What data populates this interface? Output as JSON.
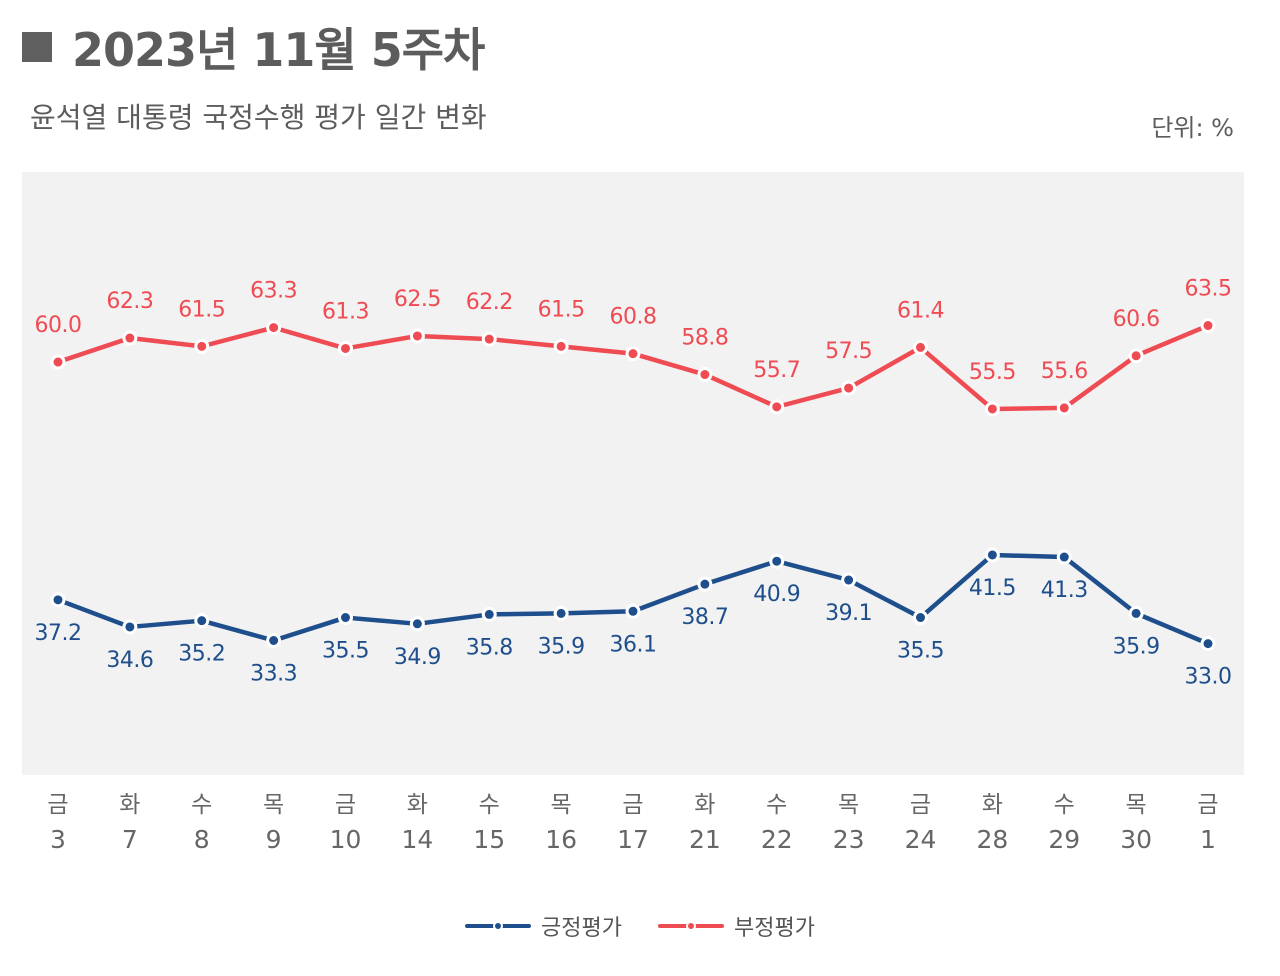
{
  "header": {
    "title": "2023년 11월 5주차",
    "subtitle": "윤석열 대통령 국정수행 평가 일간 변화",
    "unit": "단위: %"
  },
  "colors": {
    "positive": "#1e4f8c",
    "negative": "#ef4b52",
    "plot_bg": "#f2f2f2",
    "axis_text": "#666666"
  },
  "chart_data": {
    "type": "line",
    "categories": [
      {
        "day": "금",
        "date": "3"
      },
      {
        "day": "화",
        "date": "7"
      },
      {
        "day": "수",
        "date": "8"
      },
      {
        "day": "목",
        "date": "9"
      },
      {
        "day": "금",
        "date": "10"
      },
      {
        "day": "화",
        "date": "14"
      },
      {
        "day": "수",
        "date": "15"
      },
      {
        "day": "목",
        "date": "16"
      },
      {
        "day": "금",
        "date": "17"
      },
      {
        "day": "화",
        "date": "21"
      },
      {
        "day": "수",
        "date": "22"
      },
      {
        "day": "목",
        "date": "23"
      },
      {
        "day": "금",
        "date": "24"
      },
      {
        "day": "화",
        "date": "28"
      },
      {
        "day": "수",
        "date": "29"
      },
      {
        "day": "목",
        "date": "30"
      },
      {
        "day": "금",
        "date": "1"
      }
    ],
    "series": [
      {
        "name": "긍정평가",
        "color": "#1e4f8c",
        "labels": [
          "37.2",
          "34.6",
          "35.2",
          "33.3",
          "35.5",
          "34.9",
          "35.8",
          "35.9",
          "36.1",
          "38.7",
          "40.9",
          "39.1",
          "35.5",
          "41.5",
          "41.3",
          "35.9",
          "33.0"
        ],
        "values": [
          37.2,
          34.6,
          35.2,
          33.3,
          35.5,
          34.9,
          35.8,
          35.9,
          36.1,
          38.7,
          40.9,
          39.1,
          35.5,
          41.5,
          41.3,
          35.9,
          33.0
        ]
      },
      {
        "name": "부정평가",
        "color": "#ef4b52",
        "labels": [
          "60.0",
          "62.3",
          "61.5",
          "63.3",
          "61.3",
          "62.5",
          "62.2",
          "61.5",
          "60.8",
          "58.8",
          "55.7",
          "57.5",
          "61.4",
          "55.5",
          "55.6",
          "60.6",
          "63.5"
        ],
        "values": [
          60.0,
          62.3,
          61.5,
          63.3,
          61.3,
          62.5,
          62.2,
          61.5,
          60.8,
          58.8,
          55.7,
          57.5,
          61.4,
          55.5,
          55.6,
          60.6,
          63.5
        ]
      }
    ],
    "grid": false,
    "legend": "bottom"
  }
}
